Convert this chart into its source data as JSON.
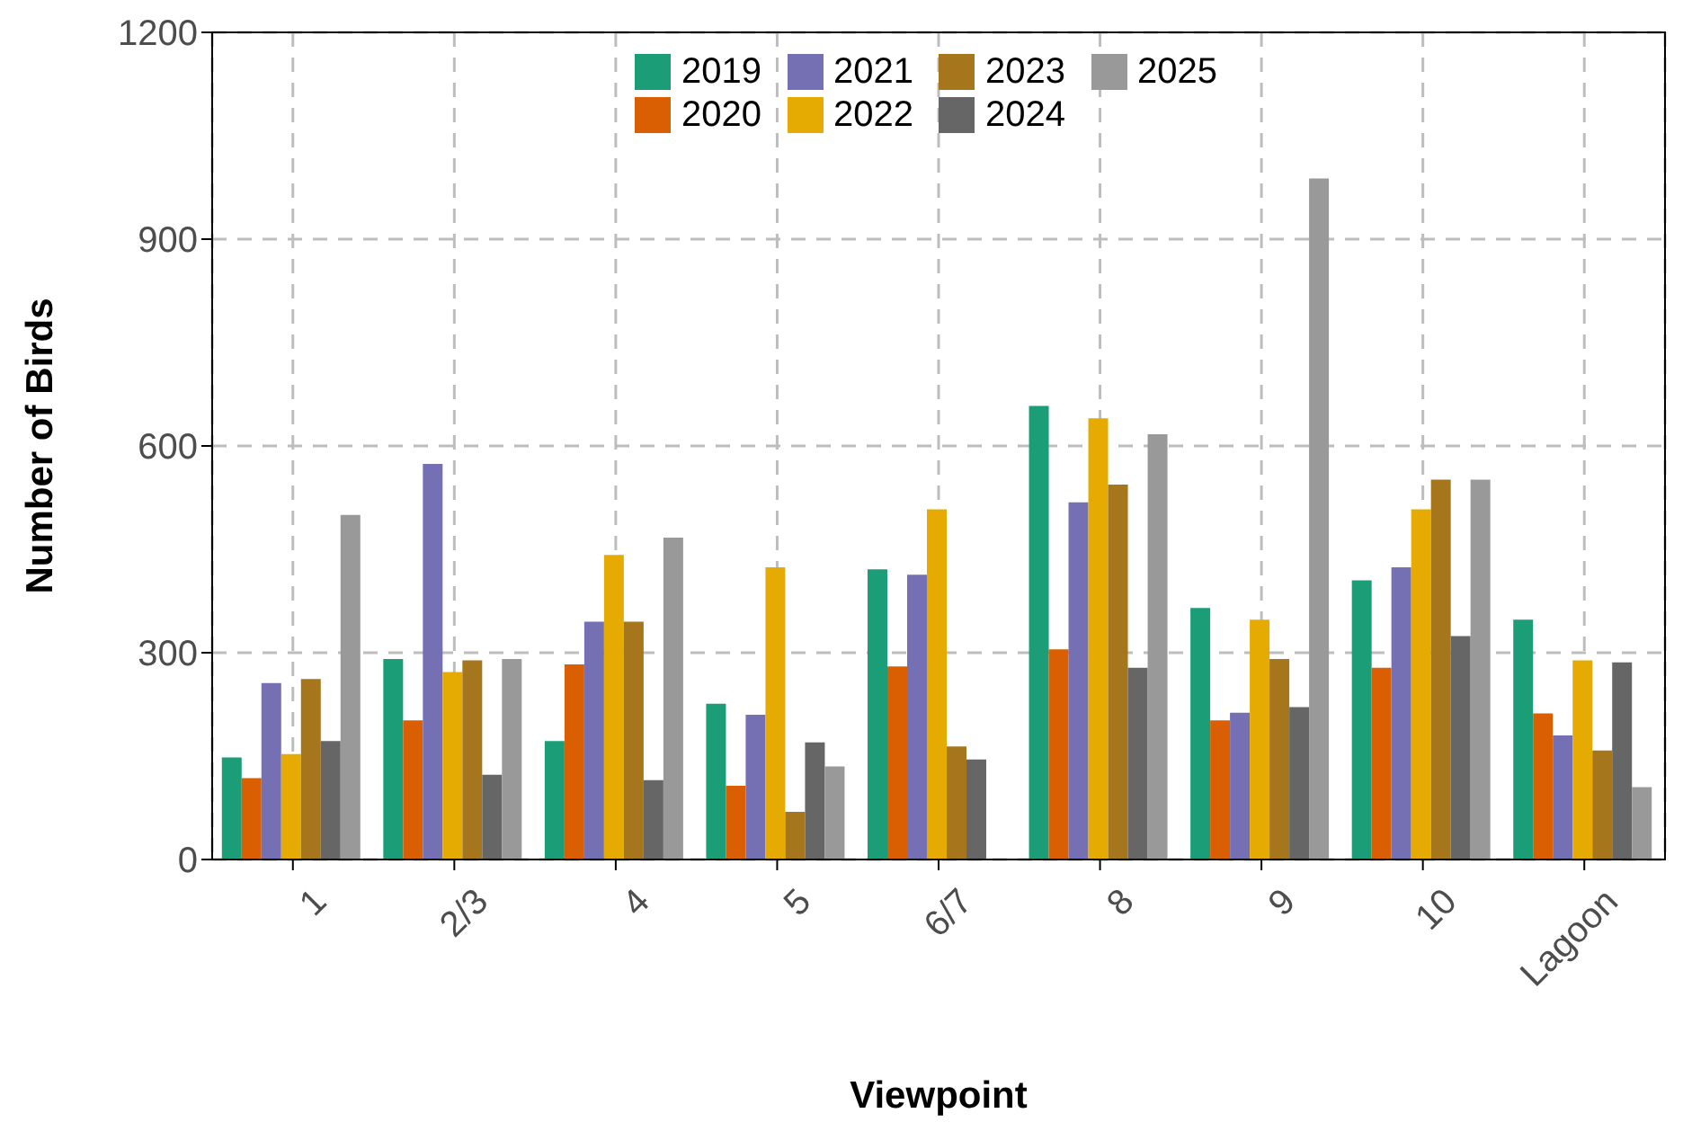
{
  "chart_data": {
    "type": "bar",
    "xlabel": "Viewpoint",
    "ylabel": "Number of Birds",
    "categories": [
      "1",
      "2/3",
      "4",
      "5",
      "6/7",
      "8",
      "9",
      "10",
      "Lagoon"
    ],
    "series": [
      {
        "name": "2019",
        "color": "#1b9e77",
        "values": [
          148,
          291,
          172,
          226,
          421,
          658,
          365,
          405,
          348
        ]
      },
      {
        "name": "2020",
        "color": "#d95f02",
        "values": [
          118,
          202,
          283,
          107,
          280,
          305,
          202,
          278,
          212
        ]
      },
      {
        "name": "2021",
        "color": "#7570b3",
        "values": [
          256,
          574,
          345,
          210,
          413,
          518,
          213,
          424,
          180
        ]
      },
      {
        "name": "2022",
        "color": "#e6ab02",
        "values": [
          153,
          272,
          442,
          424,
          508,
          640,
          348,
          508,
          289
        ]
      },
      {
        "name": "2023",
        "color": "#a6761d",
        "values": [
          262,
          289,
          345,
          69,
          164,
          544,
          291,
          551,
          158
        ]
      },
      {
        "name": "2024",
        "color": "#666666",
        "values": [
          172,
          123,
          115,
          170,
          145,
          278,
          221,
          324,
          286
        ]
      },
      {
        "name": "2025",
        "color": "#999999",
        "values": [
          500,
          291,
          467,
          135,
          null,
          617,
          988,
          551,
          105
        ]
      }
    ],
    "ylim": [
      0,
      1200
    ],
    "yticks": [
      0,
      300,
      600,
      900,
      1200
    ],
    "grid": true,
    "legend": "top"
  }
}
